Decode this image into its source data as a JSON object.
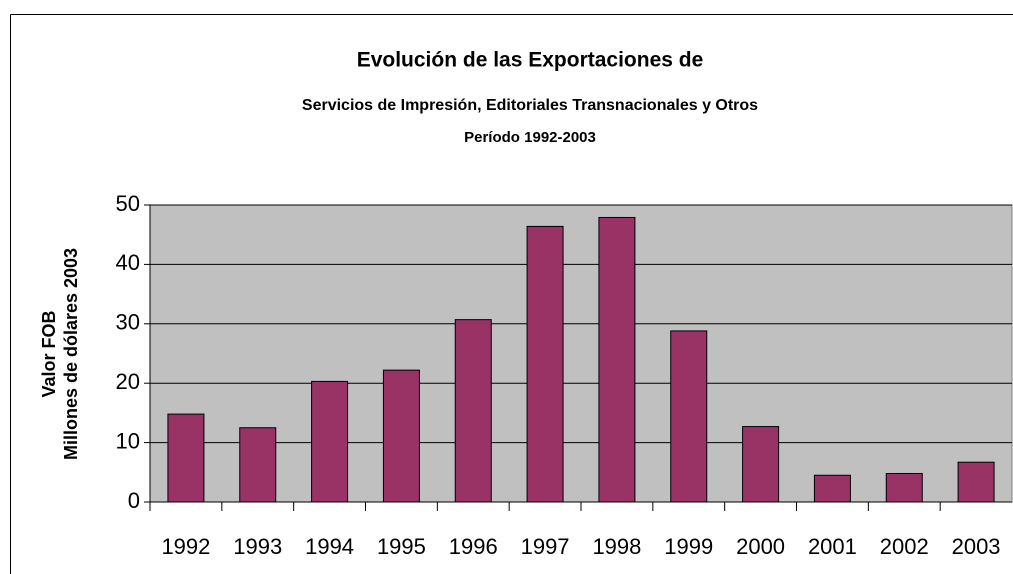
{
  "chart_data": {
    "type": "bar",
    "title": "Evolución de las Exportaciones de",
    "subtitle": "Servicios de Impresión, Editoriales Transnacionales y Otros",
    "period": "Período 1992-2003",
    "ylabel": [
      "Valor FOB",
      "Millones de dólares 2003"
    ],
    "categories": [
      "1992",
      "1993",
      "1994",
      "1995",
      "1996",
      "1997",
      "1998",
      "1999",
      "2000",
      "2001",
      "2002",
      "2003"
    ],
    "values": [
      14.8,
      12.5,
      20.3,
      22.2,
      30.7,
      46.4,
      47.9,
      28.8,
      12.7,
      4.5,
      4.8,
      6.7
    ],
    "color": "#993366",
    "plot_background": "#c0c0c0",
    "ylim": [
      0,
      50
    ],
    "yticks": [
      0,
      10,
      20,
      30,
      40,
      50
    ],
    "grid": true
  }
}
